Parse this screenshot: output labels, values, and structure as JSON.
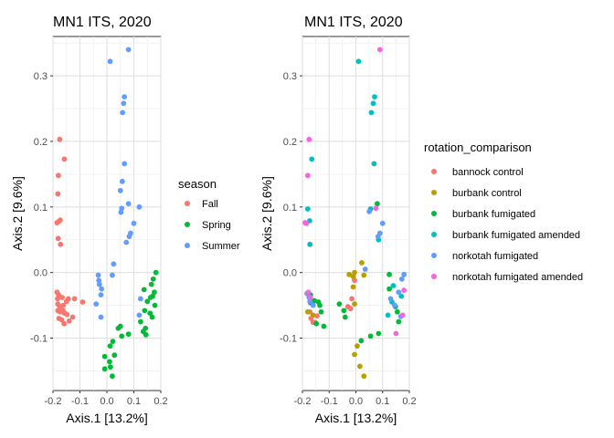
{
  "chart_data": [
    {
      "type": "scatter",
      "title": "MN1 ITS, 2020",
      "xlabel": "Axis.1   [13.2%]",
      "ylabel": "Axis.2   [9.6%]",
      "xlim": [
        -0.2,
        0.2
      ],
      "ylim": [
        -0.18,
        0.36
      ],
      "xticks": [
        "-0.2",
        "-0.1",
        "0.0",
        "0.1",
        "0.2"
      ],
      "xtick_values": [
        -0.2,
        -0.1,
        0.0,
        0.1,
        0.2
      ],
      "yticks": [
        "-0.1",
        "0.0",
        "0.1",
        "0.2",
        "0.3"
      ],
      "ytick_values": [
        -0.1,
        0.0,
        0.1,
        0.2,
        0.3
      ],
      "grid": true,
      "legend_title": "season",
      "legend_position": "right",
      "series": [
        {
          "name": "Fall",
          "color": "#F8766D",
          "points": [
            [
              -0.175,
              0.203
            ],
            [
              -0.158,
              0.173
            ],
            [
              -0.18,
              0.148
            ],
            [
              -0.182,
              0.12
            ],
            [
              -0.178,
              0.078
            ],
            [
              -0.173,
              0.08
            ],
            [
              -0.185,
              0.076
            ],
            [
              -0.181,
              0.052
            ],
            [
              -0.172,
              0.043
            ],
            [
              -0.185,
              -0.03
            ],
            [
              -0.179,
              -0.034
            ],
            [
              -0.183,
              -0.04
            ],
            [
              -0.166,
              -0.038
            ],
            [
              -0.182,
              -0.048
            ],
            [
              -0.175,
              -0.052
            ],
            [
              -0.162,
              -0.05
            ],
            [
              -0.15,
              -0.044
            ],
            [
              -0.143,
              -0.04
            ],
            [
              -0.12,
              -0.04
            ],
            [
              -0.182,
              -0.058
            ],
            [
              -0.173,
              -0.06
            ],
            [
              -0.163,
              -0.058
            ],
            [
              -0.157,
              -0.062
            ],
            [
              -0.148,
              -0.064
            ],
            [
              -0.178,
              -0.07
            ],
            [
              -0.168,
              -0.072
            ],
            [
              -0.159,
              -0.078
            ],
            [
              -0.14,
              -0.074
            ],
            [
              -0.127,
              -0.068
            ],
            [
              -0.09,
              -0.045
            ]
          ]
        },
        {
          "name": "Spring",
          "color": "#00BA38",
          "points": [
            [
              0.182,
              0.0
            ],
            [
              0.172,
              -0.01
            ],
            [
              0.165,
              -0.018
            ],
            [
              0.176,
              -0.03
            ],
            [
              0.17,
              -0.036
            ],
            [
              0.162,
              -0.038
            ],
            [
              0.138,
              -0.026
            ],
            [
              0.15,
              -0.044
            ],
            [
              0.178,
              -0.05
            ],
            [
              0.14,
              -0.058
            ],
            [
              0.125,
              -0.075
            ],
            [
              0.143,
              -0.085
            ],
            [
              0.16,
              -0.062
            ],
            [
              0.168,
              -0.068
            ],
            [
              0.135,
              -0.09
            ],
            [
              0.145,
              -0.095
            ],
            [
              0.08,
              -0.094
            ],
            [
              0.05,
              -0.082
            ],
            [
              0.042,
              -0.085
            ],
            [
              0.055,
              -0.097
            ],
            [
              0.022,
              -0.105
            ],
            [
              0.012,
              -0.112
            ],
            [
              0.028,
              -0.126
            ],
            [
              -0.008,
              -0.128
            ],
            [
              0.01,
              -0.136
            ],
            [
              0.013,
              -0.144
            ],
            [
              -0.008,
              -0.147
            ],
            [
              0.02,
              -0.158
            ]
          ]
        },
        {
          "name": "Summer",
          "color": "#619CFF",
          "points": [
            [
              0.08,
              0.34
            ],
            [
              0.012,
              0.322
            ],
            [
              0.065,
              0.268
            ],
            [
              0.062,
              0.258
            ],
            [
              0.058,
              0.244
            ],
            [
              0.065,
              0.166
            ],
            [
              0.057,
              0.139
            ],
            [
              0.05,
              0.125
            ],
            [
              0.08,
              0.105
            ],
            [
              0.12,
              0.1
            ],
            [
              0.055,
              0.098
            ],
            [
              0.052,
              0.092
            ],
            [
              0.1,
              0.075
            ],
            [
              0.088,
              0.06
            ],
            [
              0.083,
              0.055
            ],
            [
              0.072,
              0.046
            ],
            [
              0.025,
              0.013
            ],
            [
              0.02,
              -0.004
            ],
            [
              -0.032,
              -0.004
            ],
            [
              -0.03,
              -0.012
            ],
            [
              -0.028,
              -0.018
            ],
            [
              -0.02,
              -0.025
            ],
            [
              -0.022,
              -0.034
            ],
            [
              0.125,
              -0.04
            ],
            [
              -0.04,
              -0.048
            ],
            [
              0.12,
              -0.065
            ],
            [
              -0.022,
              -0.068
            ]
          ]
        }
      ]
    },
    {
      "type": "scatter",
      "title": "MN1 ITS, 2020",
      "xlabel": "Axis.1   [13.2%]",
      "ylabel": "Axis.2   [9.6%]",
      "xlim": [
        -0.2,
        0.2
      ],
      "ylim": [
        -0.18,
        0.36
      ],
      "xticks": [
        "-0.2",
        "-0.1",
        "0.0",
        "0.1",
        "0.2"
      ],
      "xtick_values": [
        -0.2,
        -0.1,
        0.0,
        0.1,
        0.2
      ],
      "yticks": [
        "-0.1",
        "0.0",
        "0.1",
        "0.2",
        "0.3"
      ],
      "ytick_values": [
        -0.1,
        0.0,
        0.1,
        0.2,
        0.3
      ],
      "grid": true,
      "legend_title": "rotation_comparison",
      "legend_position": "right",
      "series": [
        {
          "name": "bannock control",
          "color": "#F8766D",
          "points": [
            [
              -0.162,
              -0.048
            ],
            [
              -0.172,
              -0.06
            ],
            [
              -0.168,
              -0.07
            ],
            [
              -0.16,
              -0.076
            ],
            [
              -0.152,
              -0.076
            ],
            [
              -0.145,
              -0.066
            ],
            [
              -0.183,
              -0.032
            ],
            [
              -0.02,
              -0.055
            ],
            [
              -0.005,
              -0.012
            ],
            [
              -0.015,
              -0.04
            ],
            [
              -0.03,
              -0.052
            ],
            [
              -0.02,
              -0.055
            ]
          ]
        },
        {
          "name": "burbank control",
          "color": "#B79F00",
          "points": [
            [
              0.022,
              0.015
            ],
            [
              0.03,
              -0.004
            ],
            [
              -0.005,
              0.0
            ],
            [
              -0.01,
              -0.006
            ],
            [
              -0.025,
              -0.003
            ],
            [
              -0.01,
              -0.022
            ],
            [
              -0.005,
              -0.048
            ],
            [
              0.005,
              -0.112
            ],
            [
              -0.005,
              -0.125
            ],
            [
              0.015,
              -0.143
            ],
            [
              0.03,
              -0.158
            ],
            [
              -0.18,
              -0.06
            ],
            [
              -0.16,
              -0.065
            ]
          ]
        },
        {
          "name": "burbank fumigated",
          "color": "#00BA38",
          "points": [
            [
              0.125,
              -0.003
            ],
            [
              0.08,
              0.105
            ],
            [
              0.02,
              -0.104
            ],
            [
              0.055,
              -0.097
            ],
            [
              0.085,
              -0.093
            ],
            [
              0.155,
              -0.06
            ],
            [
              0.148,
              -0.052
            ],
            [
              0.16,
              -0.075
            ],
            [
              0.125,
              -0.025
            ],
            [
              -0.14,
              -0.045
            ],
            [
              -0.13,
              -0.06
            ],
            [
              -0.135,
              -0.05
            ],
            [
              -0.17,
              -0.034
            ],
            [
              -0.155,
              -0.043
            ],
            [
              -0.17,
              -0.046
            ],
            [
              -0.12,
              -0.082
            ],
            [
              -0.045,
              -0.058
            ],
            [
              -0.04,
              -0.068
            ],
            [
              -0.148,
              -0.078
            ],
            [
              -0.062,
              -0.048
            ]
          ]
        },
        {
          "name": "burbank fumigated amended",
          "color": "#00BFC4",
          "points": [
            [
              0.01,
              0.322
            ],
            [
              0.07,
              0.268
            ],
            [
              0.065,
              0.258
            ],
            [
              0.058,
              0.244
            ],
            [
              0.068,
              0.166
            ],
            [
              -0.165,
              0.173
            ],
            [
              -0.18,
              0.097
            ],
            [
              -0.173,
              0.079
            ],
            [
              -0.172,
              0.043
            ],
            [
              0.055,
              0.097
            ],
            [
              0.085,
              0.05
            ],
            [
              0.12,
              -0.065
            ],
            [
              0.135,
              -0.045
            ],
            [
              0.14,
              -0.02
            ],
            [
              0.17,
              -0.036
            ]
          ]
        },
        {
          "name": "norkotah fumigated",
          "color": "#619CFF",
          "points": [
            [
              0.05,
              0.093
            ],
            [
              0.1,
              0.075
            ],
            [
              0.09,
              0.06
            ],
            [
              0.083,
              0.055
            ],
            [
              0.035,
              0.005
            ],
            [
              0.18,
              -0.003
            ],
            [
              0.172,
              -0.01
            ],
            [
              0.16,
              -0.03
            ],
            [
              0.13,
              -0.04
            ],
            [
              0.145,
              -0.05
            ],
            [
              0.168,
              -0.067
            ],
            [
              -0.16,
              -0.05
            ],
            [
              -0.175,
              -0.038
            ],
            [
              -0.18,
              -0.032
            ],
            [
              -0.172,
              -0.044
            ]
          ]
        },
        {
          "name": "norkotah fumigated amended",
          "color": "#F564E3",
          "points": [
            [
              0.09,
              0.34
            ],
            [
              -0.175,
              0.203
            ],
            [
              -0.18,
              0.148
            ],
            [
              -0.19,
              0.076
            ],
            [
              -0.185,
              0.075
            ],
            [
              0.075,
              0.098
            ],
            [
              0.18,
              -0.027
            ],
            [
              0.175,
              -0.065
            ],
            [
              0.15,
              -0.093
            ],
            [
              -0.178,
              -0.03
            ],
            [
              -0.17,
              -0.038
            ]
          ]
        }
      ]
    }
  ]
}
